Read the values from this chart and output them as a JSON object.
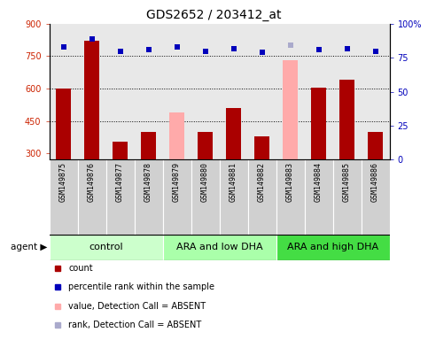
{
  "title": "GDS2652 / 203412_at",
  "samples": [
    "GSM149875",
    "GSM149876",
    "GSM149877",
    "GSM149878",
    "GSM149879",
    "GSM149880",
    "GSM149881",
    "GSM149882",
    "GSM149883",
    "GSM149884",
    "GSM149885",
    "GSM149886"
  ],
  "bar_values": [
    600,
    820,
    355,
    400,
    490,
    400,
    510,
    380,
    730,
    605,
    640,
    400
  ],
  "bar_absent": [
    false,
    false,
    false,
    false,
    true,
    false,
    false,
    false,
    true,
    false,
    false,
    false
  ],
  "percentile_values": [
    83,
    89,
    80,
    81,
    83,
    80,
    82,
    79,
    84,
    81,
    82,
    80
  ],
  "percentile_absent": [
    false,
    false,
    false,
    false,
    false,
    false,
    false,
    false,
    true,
    false,
    false,
    false
  ],
  "ylim_left": [
    270,
    900
  ],
  "ylim_right": [
    0,
    100
  ],
  "yticks_left": [
    300,
    450,
    600,
    750,
    900
  ],
  "yticks_right": [
    0,
    25,
    50,
    75,
    100
  ],
  "groups": [
    {
      "label": "control",
      "start": 0,
      "end": 3,
      "color": "#ccffcc"
    },
    {
      "label": "ARA and low DHA",
      "start": 4,
      "end": 7,
      "color": "#aaffaa"
    },
    {
      "label": "ARA and high DHA",
      "start": 8,
      "end": 11,
      "color": "#44dd44"
    }
  ],
  "bar_color_present": "#aa0000",
  "bar_color_absent": "#ffaaaa",
  "dot_color_present": "#0000bb",
  "dot_color_absent": "#aaaacc",
  "agent_label": "agent",
  "legend_items": [
    {
      "color": "#aa0000",
      "label": "count",
      "marker": "s"
    },
    {
      "color": "#0000bb",
      "label": "percentile rank within the sample",
      "marker": "s"
    },
    {
      "color": "#ffaaaa",
      "label": "value, Detection Call = ABSENT",
      "marker": "s"
    },
    {
      "color": "#aaaacc",
      "label": "rank, Detection Call = ABSENT",
      "marker": "s"
    }
  ],
  "plot_bg_color": "#e8e8e8",
  "hline_values": [
    750,
    600,
    450
  ],
  "title_fontsize": 10,
  "tick_fontsize": 7,
  "label_fontsize": 6,
  "group_fontsize": 8
}
